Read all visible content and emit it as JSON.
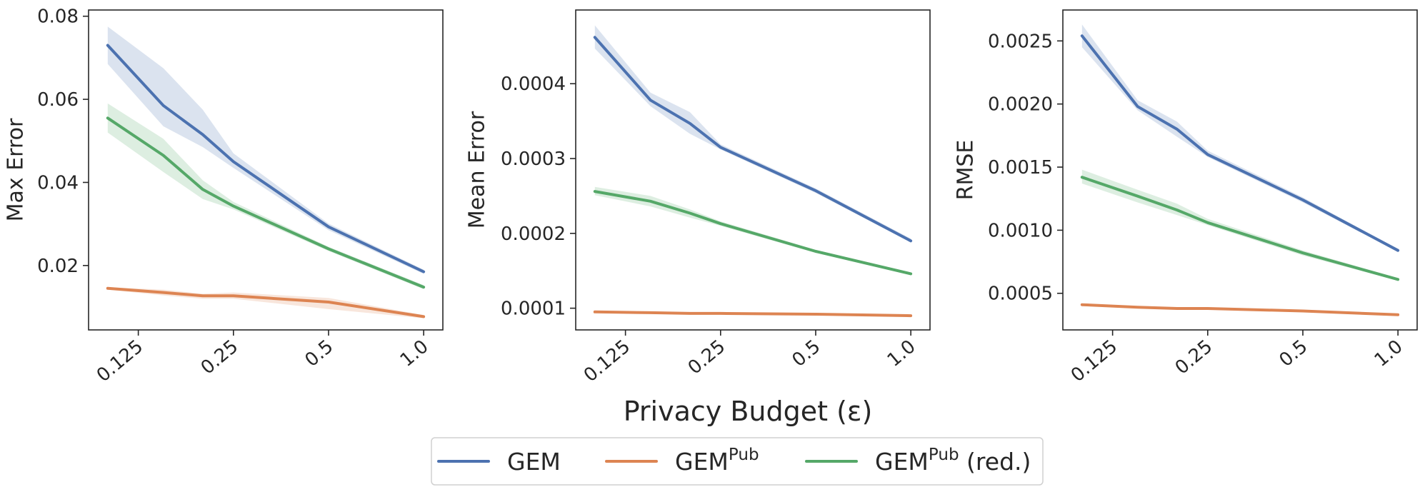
{
  "figure": {
    "supxlabel": "Privacy Budget (ε)"
  },
  "legend": {
    "placement": "bottom-center",
    "entries": [
      {
        "base": "GEM",
        "sup": "",
        "suffix": "",
        "color": "#4c72b0"
      },
      {
        "base": "GEM",
        "sup": "Pub",
        "suffix": "",
        "color": "#dd8452"
      },
      {
        "base": "GEM",
        "sup": "Pub",
        "suffix": " (red.)",
        "color": "#55a868"
      }
    ]
  },
  "chart_data": [
    {
      "type": "line",
      "ylabel": "Max Error",
      "x": [
        0.1,
        0.15,
        0.2,
        0.25,
        0.5,
        1.0
      ],
      "x_ticks": [
        0.125,
        0.25,
        0.5,
        1.0
      ],
      "x_tick_labels": [
        "0.125",
        "0.25",
        "0.5",
        "1.0"
      ],
      "x_scale": "log",
      "xlim": [
        0.087,
        1.15
      ],
      "ylim": [
        0.0045,
        0.0815
      ],
      "y_ticks": [
        0.02,
        0.04,
        0.06,
        0.08
      ],
      "y_tick_labels": [
        "0.02",
        "0.04",
        "0.06",
        "0.08"
      ],
      "grid": false,
      "series": [
        {
          "name": "GEM",
          "color": "#4c72b0",
          "values": [
            0.073,
            0.0585,
            0.0515,
            0.045,
            0.0293,
            0.0185
          ],
          "lower": [
            0.0685,
            0.0535,
            0.0485,
            0.0435,
            0.0285,
            0.018
          ],
          "upper": [
            0.0775,
            0.0675,
            0.0575,
            0.047,
            0.0301,
            0.019
          ]
        },
        {
          "name": "GEM^Pub",
          "color": "#dd8452",
          "values": [
            0.0145,
            0.0135,
            0.0127,
            0.0127,
            0.0112,
            0.0077
          ],
          "lower": [
            0.0142,
            0.0128,
            0.012,
            0.012,
            0.0095,
            0.0073
          ],
          "upper": [
            0.0148,
            0.0142,
            0.0132,
            0.0135,
            0.0122,
            0.0081
          ]
        },
        {
          "name": "GEM^Pub (red.)",
          "color": "#55a868",
          "values": [
            0.0555,
            0.0465,
            0.0383,
            0.0343,
            0.024,
            0.0148
          ],
          "lower": [
            0.052,
            0.0425,
            0.036,
            0.0335,
            0.0235,
            0.0143
          ],
          "upper": [
            0.059,
            0.0505,
            0.0405,
            0.0353,
            0.0245,
            0.0153
          ]
        }
      ]
    },
    {
      "type": "line",
      "ylabel": "Mean Error",
      "x": [
        0.1,
        0.15,
        0.2,
        0.25,
        0.5,
        1.0
      ],
      "x_ticks": [
        0.125,
        0.25,
        0.5,
        1.0
      ],
      "x_tick_labels": [
        "0.125",
        "0.25",
        "0.5",
        "1.0"
      ],
      "x_scale": "log",
      "xlim": [
        0.087,
        1.15
      ],
      "ylim": [
        7.1e-05,
        0.0004985
      ],
      "y_ticks": [
        0.0001,
        0.0002,
        0.0003,
        0.0004
      ],
      "y_tick_labels": [
        "0.0001",
        "0.0002",
        "0.0003",
        "0.0004"
      ],
      "grid": false,
      "series": [
        {
          "name": "GEM",
          "color": "#4c72b0",
          "values": [
            0.000462,
            0.000378,
            0.000347,
            0.000315,
            0.000257,
            0.00019
          ],
          "lower": [
            0.000447,
            0.00037,
            0.000333,
            0.000312,
            0.000254,
            0.000188
          ],
          "upper": [
            0.000478,
            0.000388,
            0.000362,
            0.000319,
            0.00026,
            0.000193
          ]
        },
        {
          "name": "GEM^Pub",
          "color": "#dd8452",
          "values": [
            9.5e-05,
            9.4e-05,
            9.3e-05,
            9.3e-05,
            9.2e-05,
            9e-05
          ],
          "lower": [
            9.4e-05,
            9.3e-05,
            9.2e-05,
            9.2e-05,
            9.1e-05,
            8.9e-05
          ],
          "upper": [
            9.6e-05,
            9.5e-05,
            9.4e-05,
            9.4e-05,
            9.3e-05,
            9.1e-05
          ]
        },
        {
          "name": "GEM^Pub (red.)",
          "color": "#55a868",
          "values": [
            0.000256,
            0.000243,
            0.000227,
            0.000213,
            0.000176,
            0.000146
          ],
          "lower": [
            0.000251,
            0.000236,
            0.000221,
            0.00021,
            0.000174,
            0.000145
          ],
          "upper": [
            0.000262,
            0.00025,
            0.000232,
            0.000216,
            0.000178,
            0.000147
          ]
        }
      ]
    },
    {
      "type": "line",
      "ylabel": "RMSE",
      "x": [
        0.1,
        0.15,
        0.2,
        0.25,
        0.5,
        1.0
      ],
      "x_ticks": [
        0.125,
        0.25,
        0.5,
        1.0
      ],
      "x_tick_labels": [
        "0.125",
        "0.25",
        "0.5",
        "1.0"
      ],
      "x_scale": "log",
      "xlim": [
        0.087,
        1.15
      ],
      "ylim": [
        0.00021,
        0.002745
      ],
      "y_ticks": [
        0.0005,
        0.001,
        0.0015,
        0.002,
        0.0025
      ],
      "y_tick_labels": [
        "0.0005",
        "0.0010",
        "0.0015",
        "0.0020",
        "0.0025"
      ],
      "grid": false,
      "series": [
        {
          "name": "GEM",
          "color": "#4c72b0",
          "values": [
            0.00254,
            0.00198,
            0.0018,
            0.0016,
            0.00124,
            0.00084
          ],
          "lower": [
            0.00245,
            0.00195,
            0.00174,
            0.00158,
            0.00122,
            0.00083
          ],
          "upper": [
            0.00263,
            0.00203,
            0.00186,
            0.00163,
            0.00126,
            0.00085
          ]
        },
        {
          "name": "GEM^Pub",
          "color": "#dd8452",
          "values": [
            0.00041,
            0.00039,
            0.00038,
            0.00038,
            0.00036,
            0.00033
          ],
          "lower": [
            0.000405,
            0.000385,
            0.000375,
            0.000375,
            0.000355,
            0.000325
          ],
          "upper": [
            0.000415,
            0.000395,
            0.000385,
            0.000385,
            0.000365,
            0.000335
          ]
        },
        {
          "name": "GEM^Pub (red.)",
          "color": "#55a868",
          "values": [
            0.00142,
            0.00127,
            0.00116,
            0.00106,
            0.00082,
            0.00061
          ],
          "lower": [
            0.00137,
            0.00122,
            0.00112,
            0.00104,
            0.0008,
            0.0006
          ],
          "upper": [
            0.00148,
            0.00132,
            0.00121,
            0.00109,
            0.00084,
            0.00062
          ]
        }
      ]
    }
  ]
}
